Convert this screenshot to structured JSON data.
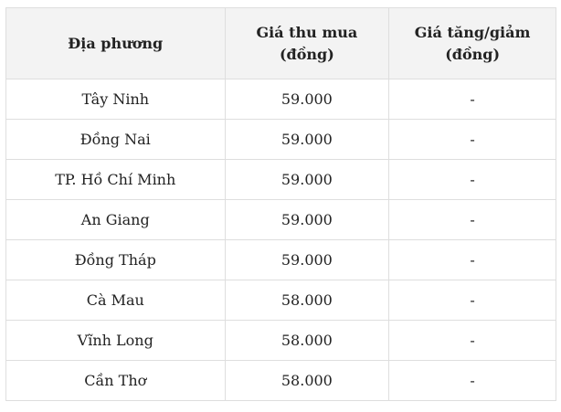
{
  "table": {
    "headers": [
      "Địa phương",
      "Giá thu mua (đồng)",
      "Giá tăng/giảm (đồng)"
    ],
    "rows": [
      [
        "Tây Ninh",
        "59.000",
        "-"
      ],
      [
        "Đồng Nai",
        "59.000",
        "-"
      ],
      [
        "TP. Hồ Chí Minh",
        "59.000",
        "-"
      ],
      [
        "An Giang",
        "59.000",
        "-"
      ],
      [
        "Đồng Tháp",
        "59.000",
        "-"
      ],
      [
        "Cà Mau",
        "58.000",
        "-"
      ],
      [
        "Vĩnh Long",
        "58.000",
        "-"
      ],
      [
        "Cần Thơ",
        "58.000",
        "-"
      ]
    ]
  }
}
